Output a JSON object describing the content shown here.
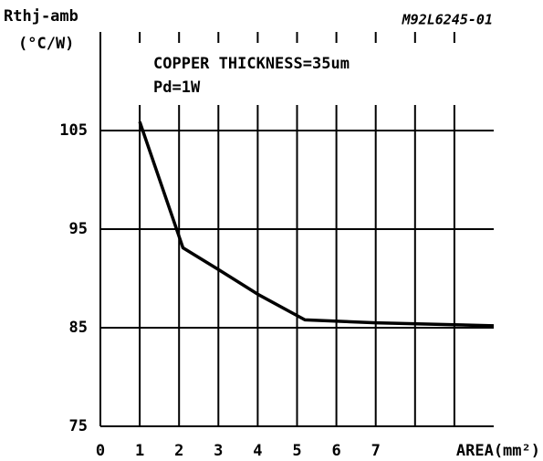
{
  "chart_data": {
    "type": "line",
    "ylabel": "Rthj-amb",
    "yunit": "(°C/W)",
    "code": "M92L6245-01",
    "annotations": [
      "COPPER THICKNESS=35um",
      "Pd=1W"
    ],
    "xlabel": "AREA(mm²)",
    "x": [
      1,
      2.1,
      3,
      4,
      5.2,
      7,
      9,
      10
    ],
    "series": [
      {
        "name": "Rthj-amb",
        "color": "#000000",
        "values": [
          105.9,
          93.1,
          90.9,
          88.4,
          85.8,
          85.5,
          85.3,
          85.2
        ]
      }
    ],
    "xlim": [
      0,
      10
    ],
    "xticks": [
      0,
      1,
      2,
      3,
      4,
      5,
      6,
      7
    ],
    "xgrid": [
      1,
      2,
      3,
      4,
      5,
      6,
      7,
      8,
      9
    ],
    "ylim": [
      75,
      115
    ],
    "yticks": [
      75,
      85,
      95,
      105
    ],
    "grid": true
  }
}
